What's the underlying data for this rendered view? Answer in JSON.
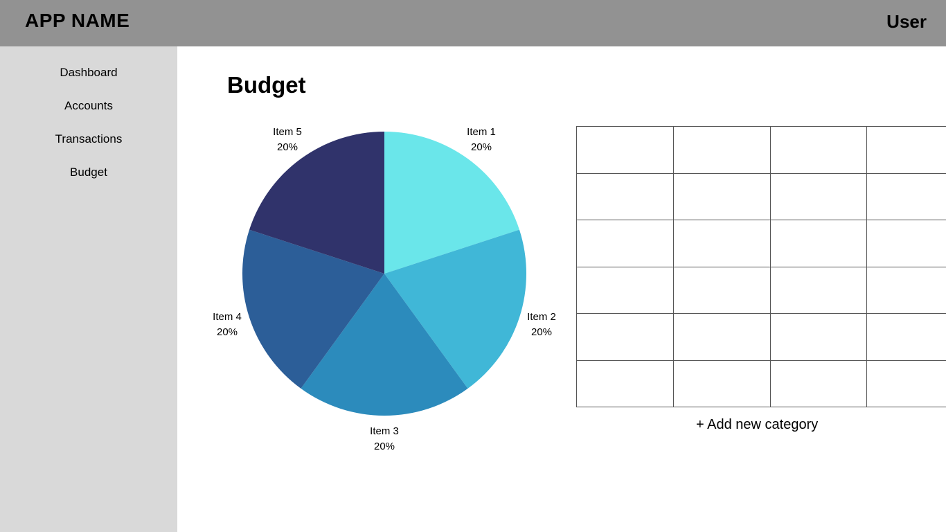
{
  "header": {
    "app_name": "APP NAME",
    "user_label": "User"
  },
  "sidebar": {
    "items": [
      {
        "label": "Dashboard"
      },
      {
        "label": "Accounts"
      },
      {
        "label": "Transactions"
      },
      {
        "label": "Budget"
      }
    ]
  },
  "main": {
    "title": "Budget",
    "add_category_label": "+ Add new category",
    "table": {
      "rows": 6,
      "columns": 4
    }
  },
  "chart_data": {
    "type": "pie",
    "slices": [
      {
        "label": "Item 1",
        "value": 20,
        "percent_label": "20%",
        "color": "#6ae6ea"
      },
      {
        "label": "Item 2",
        "value": 20,
        "percent_label": "20%",
        "color": "#40b7d7"
      },
      {
        "label": "Item 3",
        "value": 20,
        "percent_label": "20%",
        "color": "#2c8bbc"
      },
      {
        "label": "Item 4",
        "value": 20,
        "percent_label": "20%",
        "color": "#2c5e98"
      },
      {
        "label": "Item 5",
        "value": 20,
        "percent_label": "20%",
        "color": "#30336b"
      }
    ]
  }
}
